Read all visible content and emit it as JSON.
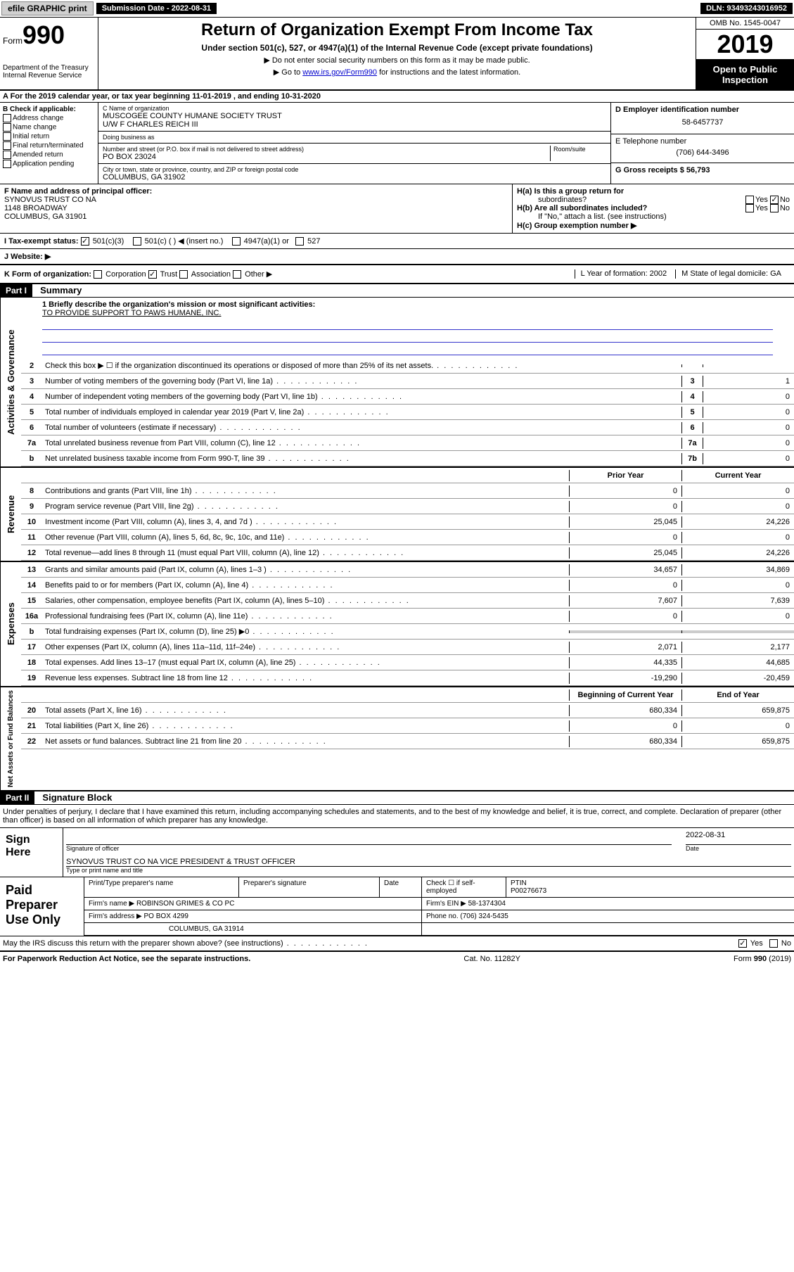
{
  "topbar": {
    "efile": "efile GRAPHIC print",
    "submission_label": "Submission Date - 2022-08-31",
    "dln": "DLN: 93493243016952"
  },
  "header": {
    "form_label": "Form",
    "form_number": "990",
    "dept": "Department of the Treasury",
    "irs": "Internal Revenue Service",
    "title": "Return of Organization Exempt From Income Tax",
    "subtitle": "Under section 501(c), 527, or 4947(a)(1) of the Internal Revenue Code (except private foundations)",
    "note1": "Do not enter social security numbers on this form as it may be made public.",
    "note2_prefix": "Go to ",
    "note2_link": "www.irs.gov/Form990",
    "note2_suffix": " for instructions and the latest information.",
    "omb": "OMB No. 1545-0047",
    "year": "2019",
    "inspection": "Open to Public Inspection"
  },
  "row_a": "A For the 2019 calendar year, or tax year beginning 11-01-2019   , and ending 10-31-2020",
  "col_b": {
    "header": "B Check if applicable:",
    "items": [
      "Address change",
      "Name change",
      "Initial return",
      "Final return/terminated",
      "Amended return",
      "Application pending"
    ]
  },
  "col_c": {
    "name_lbl": "C Name of organization",
    "name": "MUSCOGEE COUNTY HUMANE SOCIETY TRUST",
    "name2": "U/W F CHARLES REICH III",
    "dba_lbl": "Doing business as",
    "dba": "",
    "street_lbl": "Number and street (or P.O. box if mail is not delivered to street address)",
    "room_lbl": "Room/suite",
    "street": "PO BOX 23024",
    "city_lbl": "City or town, state or province, country, and ZIP or foreign postal code",
    "city": "COLUMBUS, GA  31902"
  },
  "col_d": {
    "ein_lbl": "D Employer identification number",
    "ein": "58-6457737",
    "phone_lbl": "E Telephone number",
    "phone": "(706) 644-3496",
    "gross_lbl": "G Gross receipts $ 56,793"
  },
  "col_f": {
    "lbl": "F  Name and address of principal officer:",
    "name": "SYNOVUS TRUST CO NA",
    "addr1": "1148 BROADWAY",
    "addr2": "COLUMBUS, GA  31901"
  },
  "col_h": {
    "ha": "H(a)  Is this a group return for",
    "ha2": "subordinates?",
    "hb": "H(b)  Are all subordinates included?",
    "hb_note": "If \"No,\" attach a list. (see instructions)",
    "hc": "H(c)  Group exemption number ▶",
    "yes": "Yes",
    "no": "No"
  },
  "tax_status": {
    "lbl": "I   Tax-exempt status:",
    "opt1": "501(c)(3)",
    "opt2": "501(c) (  ) ◀ (insert no.)",
    "opt3": "4947(a)(1) or",
    "opt4": "527"
  },
  "website": "J  Website: ▶",
  "klm": {
    "k": "K Form of organization:",
    "k_opts": [
      "Corporation",
      "Trust",
      "Association",
      "Other ▶"
    ],
    "l": "L Year of formation: 2002",
    "m": "M State of legal domicile: GA"
  },
  "part1": {
    "label": "Part I",
    "title": "Summary"
  },
  "mission": {
    "lbl": "1  Briefly describe the organization's mission or most significant activities:",
    "text": "TO PROVIDE SUPPORT TO PAWS HUMANE, INC."
  },
  "gov_rows": [
    {
      "n": "2",
      "d": "Check this box ▶ ☐  if the organization discontinued its operations or disposed of more than 25% of its net assets.",
      "box": "",
      "v": ""
    },
    {
      "n": "3",
      "d": "Number of voting members of the governing body (Part VI, line 1a)",
      "box": "3",
      "v": "1"
    },
    {
      "n": "4",
      "d": "Number of independent voting members of the governing body (Part VI, line 1b)",
      "box": "4",
      "v": "0"
    },
    {
      "n": "5",
      "d": "Total number of individuals employed in calendar year 2019 (Part V, line 2a)",
      "box": "5",
      "v": "0"
    },
    {
      "n": "6",
      "d": "Total number of volunteers (estimate if necessary)",
      "box": "6",
      "v": "0"
    },
    {
      "n": "7a",
      "d": "Total unrelated business revenue from Part VIII, column (C), line 12",
      "box": "7a",
      "v": "0"
    },
    {
      "n": "b",
      "d": "Net unrelated business taxable income from Form 990-T, line 39",
      "box": "7b",
      "v": "0"
    }
  ],
  "col_headers": {
    "py": "Prior Year",
    "cy": "Current Year"
  },
  "rev_rows": [
    {
      "n": "8",
      "d": "Contributions and grants (Part VIII, line 1h)",
      "py": "0",
      "cy": "0"
    },
    {
      "n": "9",
      "d": "Program service revenue (Part VIII, line 2g)",
      "py": "0",
      "cy": "0"
    },
    {
      "n": "10",
      "d": "Investment income (Part VIII, column (A), lines 3, 4, and 7d )",
      "py": "25,045",
      "cy": "24,226"
    },
    {
      "n": "11",
      "d": "Other revenue (Part VIII, column (A), lines 5, 6d, 8c, 9c, 10c, and 11e)",
      "py": "0",
      "cy": "0"
    },
    {
      "n": "12",
      "d": "Total revenue—add lines 8 through 11 (must equal Part VIII, column (A), line 12)",
      "py": "25,045",
      "cy": "24,226"
    }
  ],
  "exp_rows": [
    {
      "n": "13",
      "d": "Grants and similar amounts paid (Part IX, column (A), lines 1–3 )",
      "py": "34,657",
      "cy": "34,869"
    },
    {
      "n": "14",
      "d": "Benefits paid to or for members (Part IX, column (A), line 4)",
      "py": "0",
      "cy": "0"
    },
    {
      "n": "15",
      "d": "Salaries, other compensation, employee benefits (Part IX, column (A), lines 5–10)",
      "py": "7,607",
      "cy": "7,639"
    },
    {
      "n": "16a",
      "d": "Professional fundraising fees (Part IX, column (A), line 11e)",
      "py": "0",
      "cy": "0"
    },
    {
      "n": "b",
      "d": "Total fundraising expenses (Part IX, column (D), line 25) ▶0",
      "py": "",
      "cy": "",
      "shaded": true
    },
    {
      "n": "17",
      "d": "Other expenses (Part IX, column (A), lines 11a–11d, 11f–24e)",
      "py": "2,071",
      "cy": "2,177"
    },
    {
      "n": "18",
      "d": "Total expenses. Add lines 13–17 (must equal Part IX, column (A), line 25)",
      "py": "44,335",
      "cy": "44,685"
    },
    {
      "n": "19",
      "d": "Revenue less expenses. Subtract line 18 from line 12",
      "py": "-19,290",
      "cy": "-20,459"
    }
  ],
  "net_headers": {
    "b": "Beginning of Current Year",
    "e": "End of Year"
  },
  "net_rows": [
    {
      "n": "20",
      "d": "Total assets (Part X, line 16)",
      "py": "680,334",
      "cy": "659,875"
    },
    {
      "n": "21",
      "d": "Total liabilities (Part X, line 26)",
      "py": "0",
      "cy": "0"
    },
    {
      "n": "22",
      "d": "Net assets or fund balances. Subtract line 21 from line 20",
      "py": "680,334",
      "cy": "659,875"
    }
  ],
  "part2": {
    "label": "Part II",
    "title": "Signature Block"
  },
  "sig_text": "Under penalties of perjury, I declare that I have examined this return, including accompanying schedules and statements, and to the best of my knowledge and belief, it is true, correct, and complete. Declaration of preparer (other than officer) is based on all information of which preparer has any knowledge.",
  "sign": {
    "here": "Sign Here",
    "officer_lbl": "Signature of officer",
    "date": "2022-08-31",
    "date_lbl": "Date",
    "name": "SYNOVUS TRUST CO NA  VICE PRESIDENT & TRUST OFFICER",
    "name_lbl": "Type or print name and title"
  },
  "prep": {
    "title": "Paid Preparer Use Only",
    "r1": {
      "c1": "Print/Type preparer's name",
      "c2": "Preparer's signature",
      "c3": "Date",
      "c4": "Check ☐ if self-employed",
      "c5": "PTIN",
      "ptin": "P00276673"
    },
    "r2": {
      "lbl": "Firm's name      ▶",
      "val": "ROBINSON GRIMES & CO PC",
      "ein_lbl": "Firm's EIN ▶",
      "ein": "58-1374304"
    },
    "r3": {
      "lbl": "Firm's address ▶",
      "val": "PO BOX 4299",
      "phone_lbl": "Phone no.",
      "phone": "(706) 324-5435"
    },
    "r4": {
      "city": "COLUMBUS, GA  31914"
    }
  },
  "discuss": "May the IRS discuss this return with the preparer shown above? (see instructions)",
  "footer": {
    "left": "For Paperwork Reduction Act Notice, see the separate instructions.",
    "mid": "Cat. No. 11282Y",
    "right": "Form 990 (2019)"
  },
  "side_labels": {
    "gov": "Activities & Governance",
    "rev": "Revenue",
    "exp": "Expenses",
    "net": "Net Assets or Fund Balances"
  }
}
